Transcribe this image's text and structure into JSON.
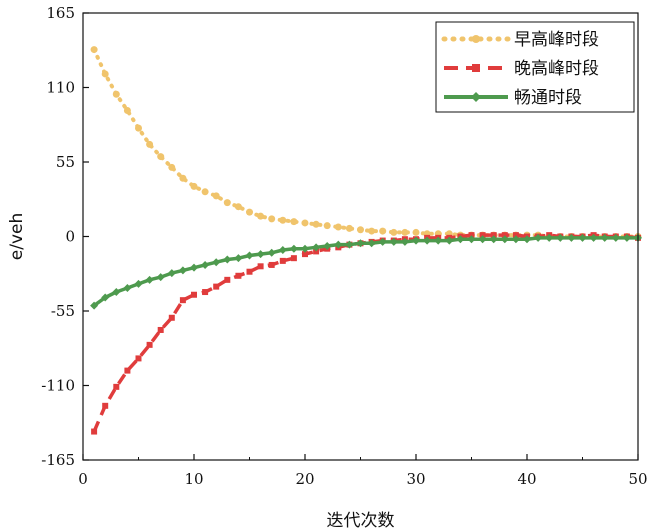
{
  "chart_data": {
    "type": "line",
    "title": "",
    "xlabel": "迭代次数",
    "ylabel": "e/veh",
    "xlim": [
      0,
      50
    ],
    "ylim": [
      -165,
      165
    ],
    "xticks": [
      0,
      10,
      20,
      30,
      40,
      50
    ],
    "yticks": [
      165,
      110,
      55,
      0,
      -55,
      -110,
      -165
    ],
    "grid": false,
    "legend_position": "top-right",
    "x": [
      1,
      2,
      3,
      4,
      5,
      6,
      7,
      8,
      9,
      10,
      11,
      12,
      13,
      14,
      15,
      16,
      17,
      18,
      19,
      20,
      21,
      22,
      23,
      24,
      25,
      26,
      27,
      28,
      29,
      30,
      31,
      32,
      33,
      34,
      35,
      36,
      37,
      38,
      39,
      40,
      41,
      42,
      43,
      44,
      45,
      46,
      47,
      48,
      49,
      50
    ],
    "series": [
      {
        "name": "早高峰时段",
        "color": "#f0c46c",
        "style": "dot",
        "marker": "circle",
        "values": [
          138,
          120,
          105,
          93,
          80,
          68,
          59,
          51,
          43,
          37,
          33,
          30,
          25,
          22,
          18,
          15,
          13,
          12,
          11,
          10,
          9,
          8,
          7,
          6,
          5,
          4,
          4,
          3,
          3,
          3,
          2,
          2,
          2,
          1,
          1,
          1,
          1,
          1,
          1,
          1,
          1,
          0,
          0,
          0,
          0,
          0,
          0,
          0,
          0,
          0
        ]
      },
      {
        "name": "晚高峰时段",
        "color": "#e03c3c",
        "style": "dash",
        "marker": "square",
        "values": [
          -144,
          -125,
          -111,
          -99,
          -90,
          -80,
          -69,
          -60,
          -47,
          -43,
          -41,
          -37,
          -32,
          -29,
          -26,
          -22,
          -21,
          -18,
          -16,
          -13,
          -11,
          -9,
          -8,
          -6,
          -5,
          -4,
          -3,
          -3,
          -2,
          -2,
          -1,
          -1,
          -1,
          0,
          1,
          1,
          1,
          1,
          1,
          0,
          0,
          1,
          0,
          0,
          0,
          1,
          0,
          0,
          0,
          -1
        ]
      },
      {
        "name": "畅通时段",
        "color": "#4e9a4e",
        "style": "solid",
        "marker": "diamond",
        "values": [
          -51,
          -45,
          -41,
          -38,
          -35,
          -32,
          -30,
          -27,
          -25,
          -23,
          -21,
          -19,
          -17,
          -16,
          -14,
          -13,
          -12,
          -10,
          -9,
          -9,
          -8,
          -7,
          -6,
          -6,
          -5,
          -5,
          -4,
          -4,
          -4,
          -3,
          -3,
          -3,
          -3,
          -2,
          -2,
          -2,
          -2,
          -2,
          -2,
          -2,
          -1,
          -1,
          -1,
          -1,
          -1,
          -1,
          -1,
          -1,
          -1,
          -1
        ]
      }
    ]
  }
}
